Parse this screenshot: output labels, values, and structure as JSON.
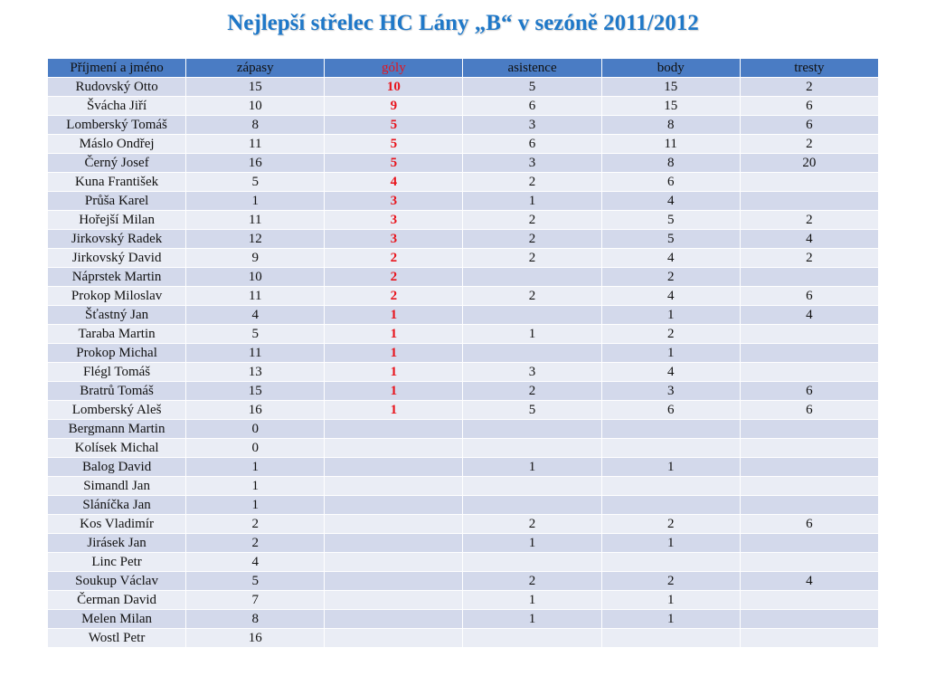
{
  "title": "Nejlepší střelec HC Lány „B“ v sezóně 2011/2012",
  "colors": {
    "title": "#1f78c8",
    "header_bg": "#4a7cc4",
    "goals": "#e8141c",
    "row_dark": "#d3d9eb",
    "row_light": "#eaedf5"
  },
  "table": {
    "headers": [
      "Příjmení a jméno",
      "zápasy",
      "góly",
      "asistence",
      "body",
      "tresty"
    ],
    "rows": [
      [
        "Rudovský Otto",
        "15",
        "10",
        "5",
        "15",
        "2"
      ],
      [
        "Švácha Jiří",
        "10",
        "9",
        "6",
        "15",
        "6"
      ],
      [
        "Lomberský Tomáš",
        "8",
        "5",
        "3",
        "8",
        "6"
      ],
      [
        "Máslo Ondřej",
        "11",
        "5",
        "6",
        "11",
        "2"
      ],
      [
        "Černý Josef",
        "16",
        "5",
        "3",
        "8",
        "20"
      ],
      [
        "Kuna František",
        "5",
        "4",
        "2",
        "6",
        ""
      ],
      [
        "Průša Karel",
        "1",
        "3",
        "1",
        "4",
        ""
      ],
      [
        "Hořejší Milan",
        "11",
        "3",
        "2",
        "5",
        "2"
      ],
      [
        "Jirkovský Radek",
        "12",
        "3",
        "2",
        "5",
        "4"
      ],
      [
        "Jirkovský David",
        "9",
        "2",
        "2",
        "4",
        "2"
      ],
      [
        "Náprstek Martin",
        "10",
        "2",
        "",
        "2",
        ""
      ],
      [
        "Prokop Miloslav",
        "11",
        "2",
        "2",
        "4",
        "6"
      ],
      [
        "Šťastný Jan",
        "4",
        "1",
        "",
        "1",
        "4"
      ],
      [
        "Taraba Martin",
        "5",
        "1",
        "1",
        "2",
        ""
      ],
      [
        "Prokop Michal",
        "11",
        "1",
        "",
        "1",
        ""
      ],
      [
        "Flégl Tomáš",
        "13",
        "1",
        "3",
        "4",
        ""
      ],
      [
        "Bratrů Tomáš",
        "15",
        "1",
        "2",
        "3",
        "6"
      ],
      [
        "Lomberský Aleš",
        "16",
        "1",
        "5",
        "6",
        "6"
      ],
      [
        "Bergmann Martin",
        "0",
        "",
        "",
        "",
        ""
      ],
      [
        "Kolísek Michal",
        "0",
        "",
        "",
        "",
        ""
      ],
      [
        "Balog David",
        "1",
        "",
        "1",
        "1",
        ""
      ],
      [
        "Simandl Jan",
        "1",
        "",
        "",
        "",
        ""
      ],
      [
        "Sláníčka Jan",
        "1",
        "",
        "",
        "",
        ""
      ],
      [
        "Kos Vladimír",
        "2",
        "",
        "2",
        "2",
        "6"
      ],
      [
        "Jirásek Jan",
        "2",
        "",
        "1",
        "1",
        ""
      ],
      [
        "Linc Petr",
        "4",
        "",
        "",
        "",
        ""
      ],
      [
        "Soukup Václav",
        "5",
        "",
        "2",
        "2",
        "4"
      ],
      [
        "Čerman David",
        "7",
        "",
        "1",
        "1",
        ""
      ],
      [
        "Melen Milan",
        "8",
        "",
        "1",
        "1",
        ""
      ],
      [
        "Wostl Petr",
        "16",
        "",
        "",
        "",
        ""
      ]
    ]
  }
}
